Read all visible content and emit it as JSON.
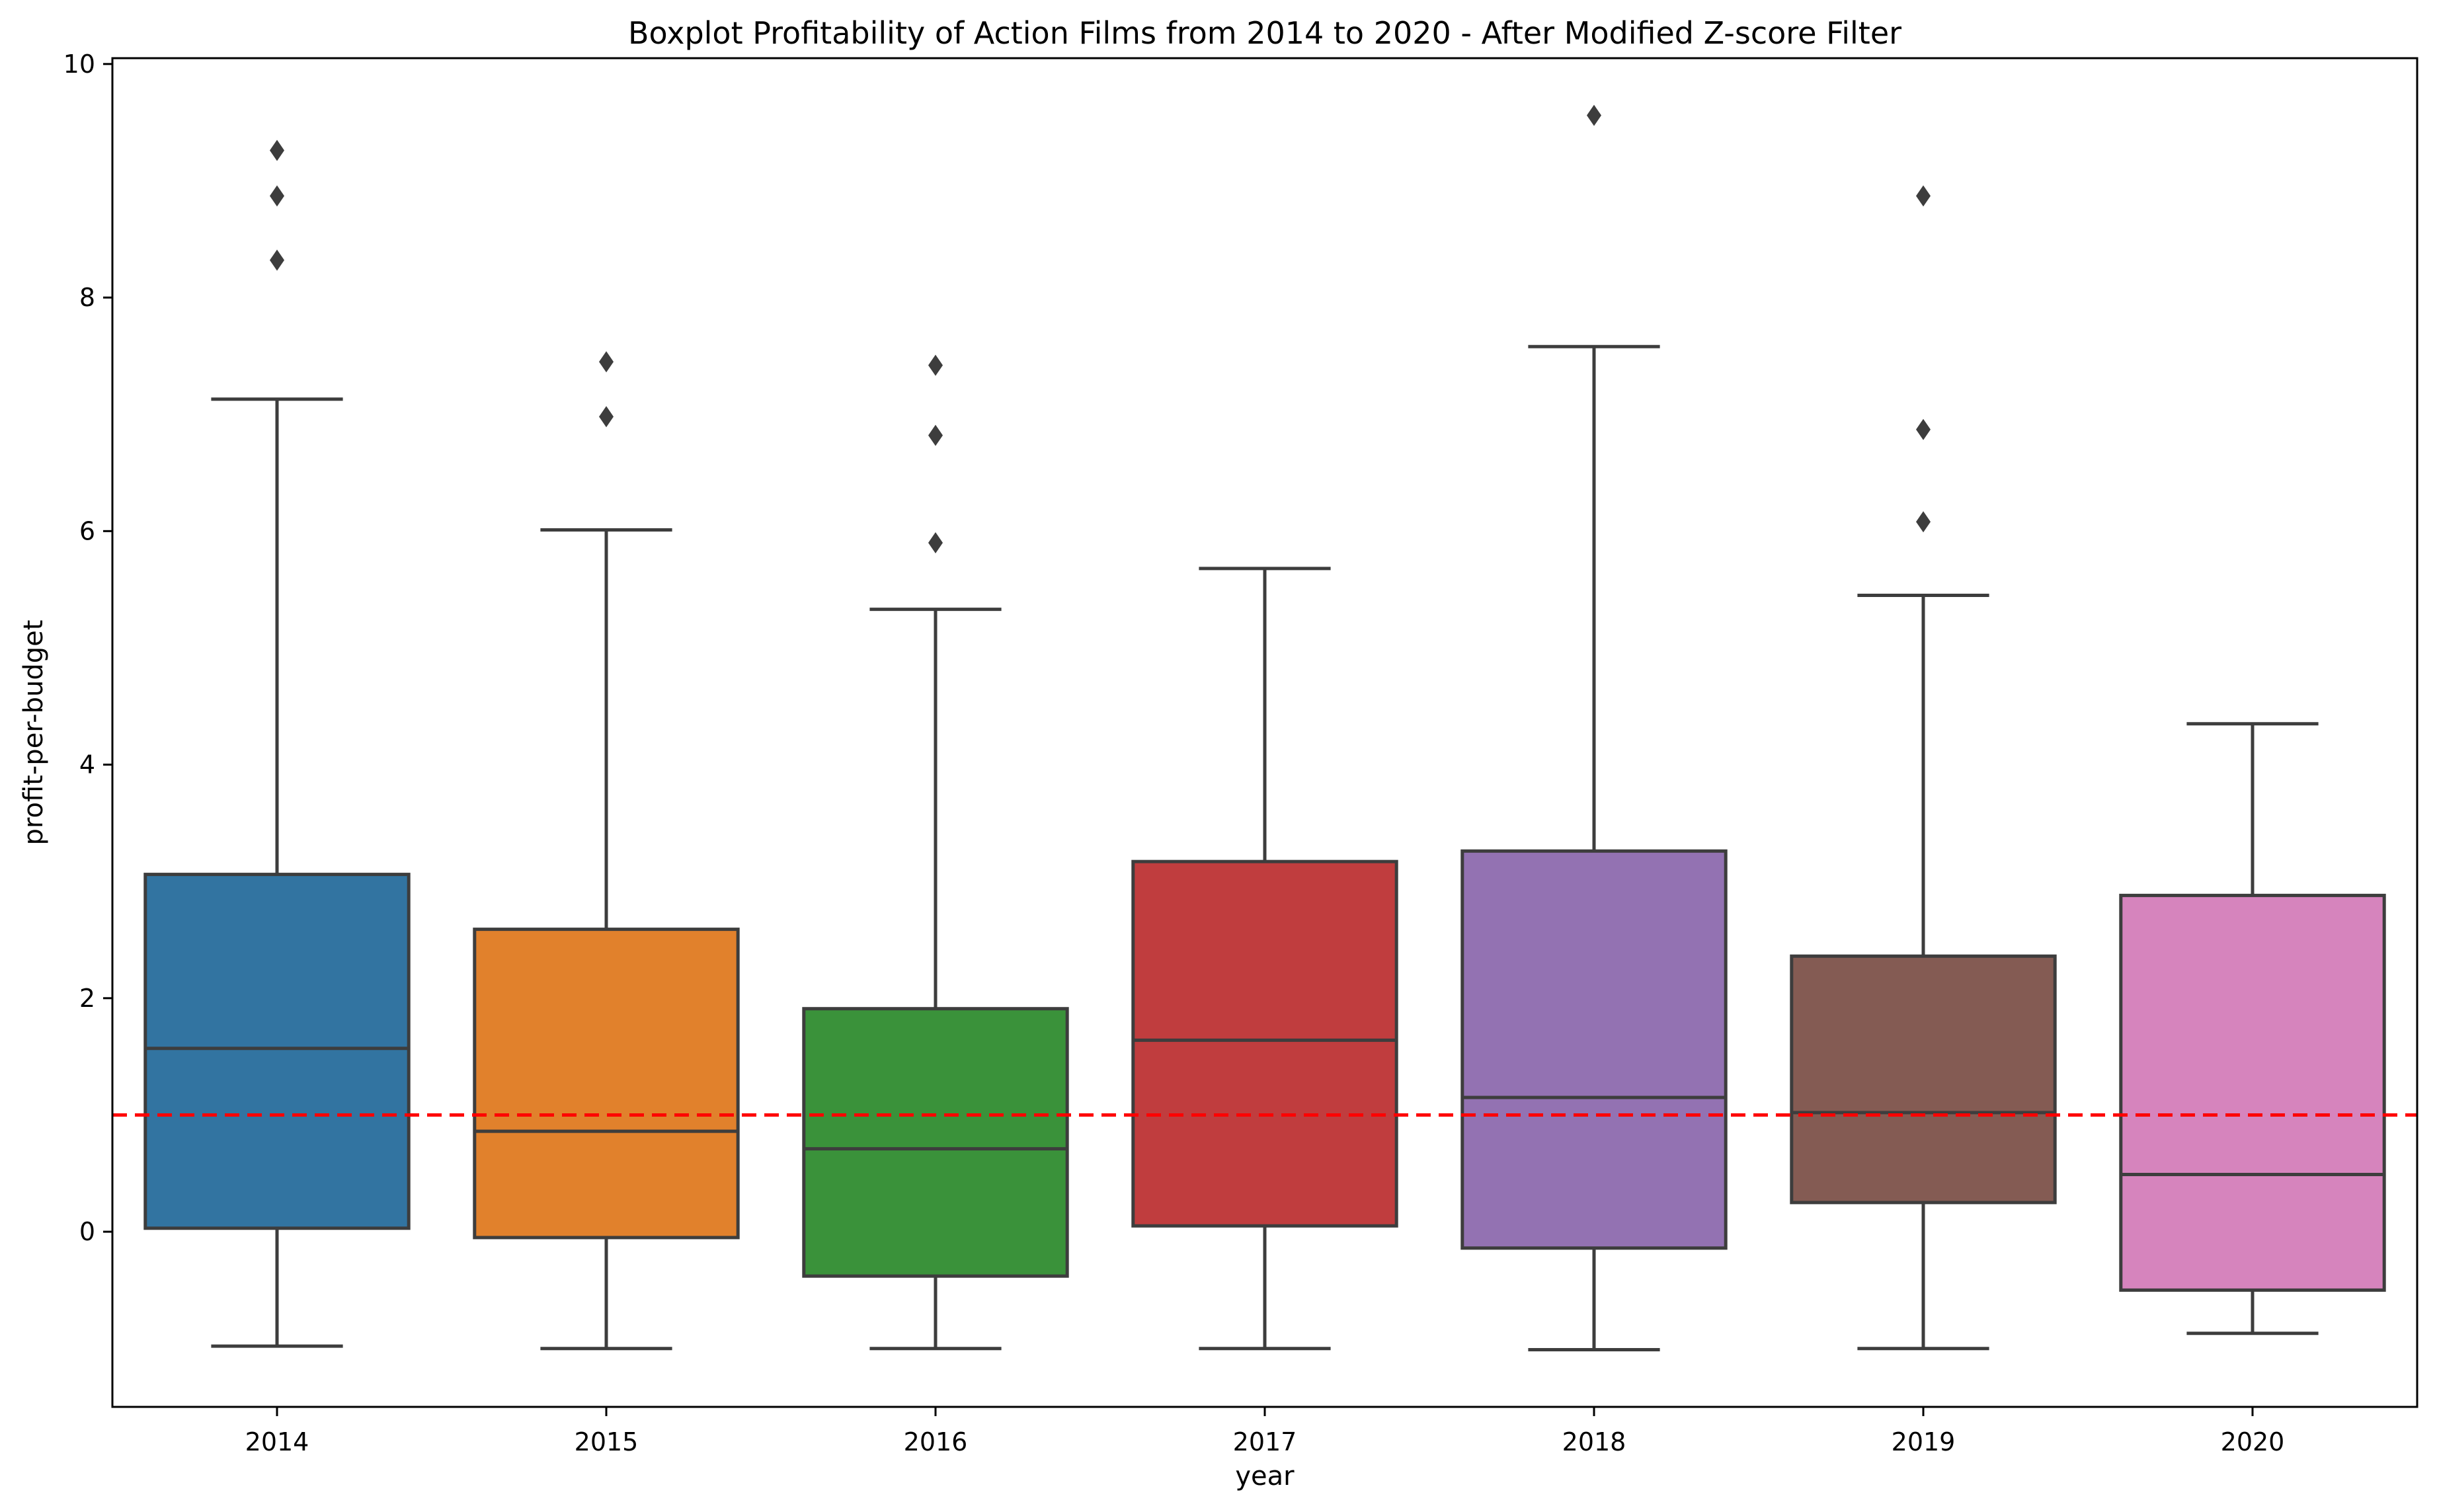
{
  "chart_data": {
    "type": "box",
    "title": "Boxplot Profitability of Action Films from 2014 to 2020 - After Modified Z-score Filter",
    "xlabel": "year",
    "ylabel": "profit-per-budget",
    "ylim": [
      -1.5,
      10.05
    ],
    "y_ticks": [
      0,
      2,
      4,
      6,
      8,
      10
    ],
    "grid": false,
    "reference_line": {
      "y": 1.0,
      "color": "#ff0000",
      "style": "dashed"
    },
    "categories": [
      "2014",
      "2015",
      "2016",
      "2017",
      "2018",
      "2019",
      "2020"
    ],
    "boxes": [
      {
        "category": "2014",
        "whisker_low": -0.98,
        "q1": 0.03,
        "median": 1.57,
        "q3": 3.06,
        "whisker_high": 7.13,
        "outliers": [
          8.32,
          8.87,
          9.26
        ],
        "color": "#3274a1"
      },
      {
        "category": "2015",
        "whisker_low": -1.0,
        "q1": -0.05,
        "median": 0.86,
        "q3": 2.59,
        "whisker_high": 6.01,
        "outliers": [
          6.98,
          7.45
        ],
        "color": "#e1812c"
      },
      {
        "category": "2016",
        "whisker_low": -1.0,
        "q1": -0.38,
        "median": 0.71,
        "q3": 1.91,
        "whisker_high": 5.33,
        "outliers": [
          5.9,
          6.82,
          7.42
        ],
        "color": "#3a923a"
      },
      {
        "category": "2017",
        "whisker_low": -1.0,
        "q1": 0.05,
        "median": 1.64,
        "q3": 3.17,
        "whisker_high": 5.68,
        "outliers": [],
        "color": "#c03d3e"
      },
      {
        "category": "2018",
        "whisker_low": -1.01,
        "q1": -0.14,
        "median": 1.15,
        "q3": 3.26,
        "whisker_high": 7.58,
        "outliers": [
          9.56
        ],
        "color": "#9372b2"
      },
      {
        "category": "2019",
        "whisker_low": -1.0,
        "q1": 0.25,
        "median": 1.02,
        "q3": 2.36,
        "whisker_high": 5.45,
        "outliers": [
          6.08,
          6.87,
          8.87
        ],
        "color": "#845b53"
      },
      {
        "category": "2020",
        "whisker_low": -0.87,
        "q1": -0.5,
        "median": 0.49,
        "q3": 2.88,
        "whisker_high": 4.35,
        "outliers": [],
        "color": "#d684bd"
      }
    ]
  }
}
